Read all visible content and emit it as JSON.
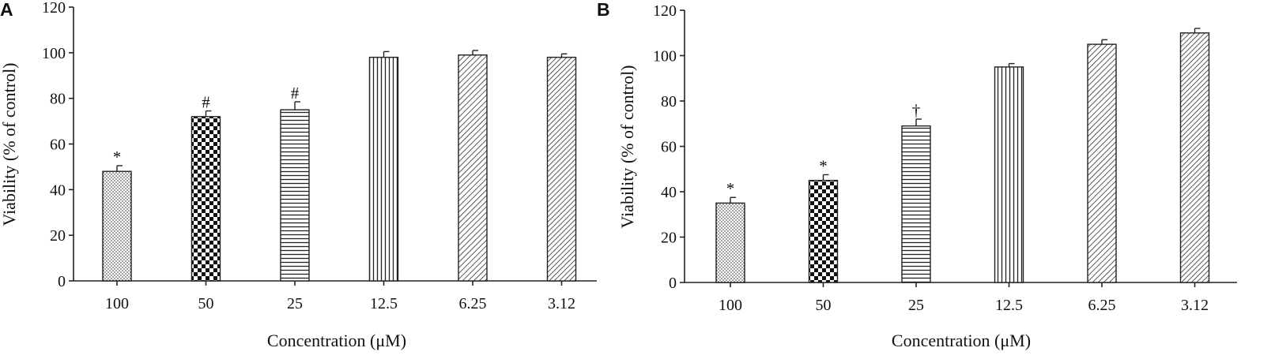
{
  "chart_data": [
    {
      "panel": "A",
      "type": "bar",
      "categories": [
        "100",
        "50",
        "25",
        "12.5",
        "6.25",
        "3.12"
      ],
      "values": [
        48,
        72,
        75,
        98,
        99,
        98
      ],
      "errors": [
        2.5,
        2.5,
        3.5,
        2.5,
        2,
        1.5
      ],
      "annotations": [
        "*",
        "#",
        "#",
        "",
        "",
        ""
      ],
      "patterns": [
        "dots",
        "checker",
        "hstripes",
        "vstripes",
        "diag",
        "diag2"
      ],
      "xlabel": "Concentration (μM)",
      "ylabel": "Viability (% of control)",
      "ylim": [
        0,
        120
      ],
      "yticks": [
        0,
        20,
        40,
        60,
        80,
        100,
        120
      ]
    },
    {
      "panel": "B",
      "type": "bar",
      "categories": [
        "100",
        "50",
        "25",
        "12.5",
        "6.25",
        "3.12"
      ],
      "values": [
        35,
        45,
        69,
        95,
        105,
        110
      ],
      "errors": [
        2.5,
        2.5,
        3,
        1.5,
        2,
        2
      ],
      "annotations": [
        "*",
        "*",
        "†",
        "",
        "",
        ""
      ],
      "patterns": [
        "dots",
        "checker",
        "hstripes",
        "vstripes",
        "diag",
        "diag2"
      ],
      "xlabel": "Concentration (μM)",
      "ylabel": "Viability (% of control)",
      "ylim": [
        0,
        120
      ],
      "yticks": [
        0,
        20,
        40,
        60,
        80,
        100,
        120
      ]
    }
  ]
}
